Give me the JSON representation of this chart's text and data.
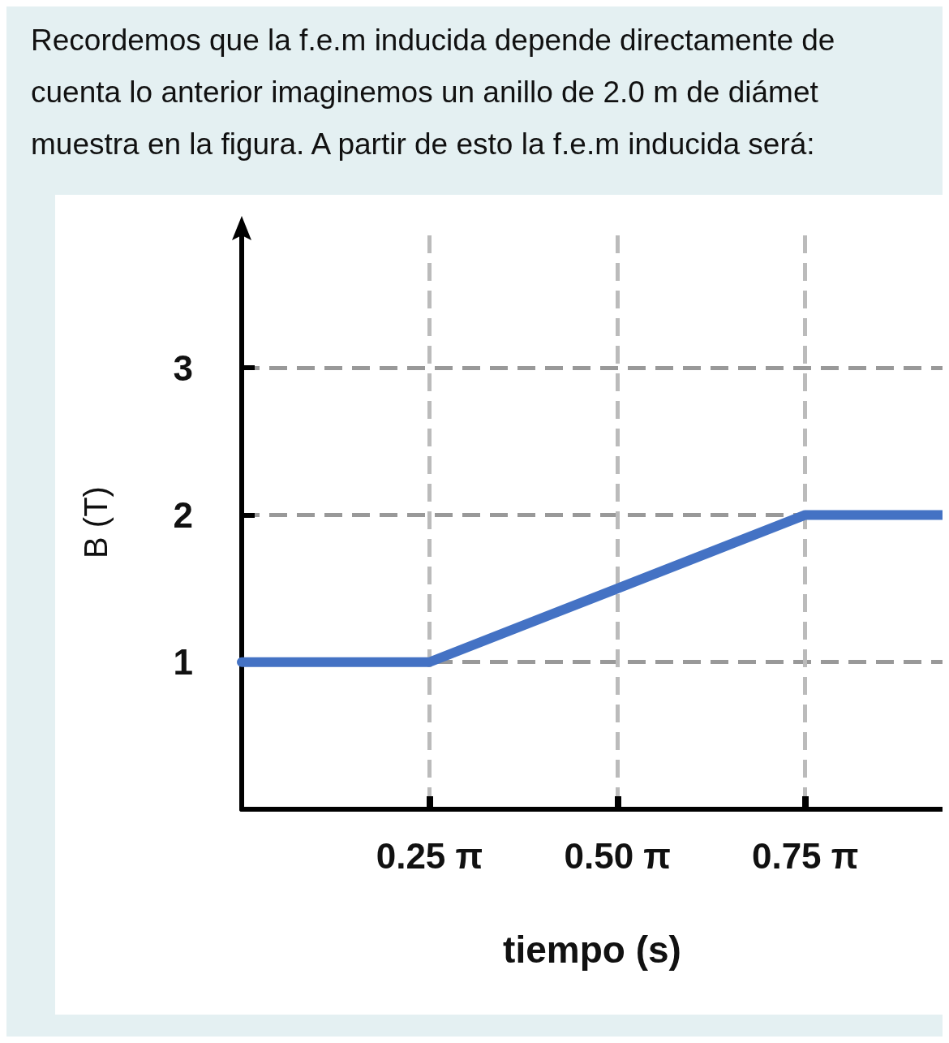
{
  "chart_data": {
    "type": "line",
    "annotations": [
      "Recordemos que la f.e.m inducida depende directamente de",
      "cuenta lo anterior imaginemos un anillo de 2.0 m de diámet",
      "muestra en la figura. A partir de esto la f.e.m inducida será:"
    ],
    "xlabel": "tiempo (s)",
    "ylabel": "B (T)",
    "x": [
      0,
      0.785,
      2.356,
      2.93
    ],
    "series": [
      {
        "color": "#4472c4",
        "values": [
          1,
          1,
          2,
          2
        ]
      }
    ],
    "xlim": [
      0,
      2.93
    ],
    "xticks": [
      {
        "value": 0.785,
        "label": "0.25 π"
      },
      {
        "value": 1.571,
        "label": "0.50 π"
      },
      {
        "value": 2.356,
        "label": "0.75 π"
      }
    ],
    "ylim": [
      0,
      3.9
    ],
    "yticks": [
      1,
      2,
      3
    ],
    "grid": true,
    "line_style": "solid",
    "marker": "none"
  }
}
